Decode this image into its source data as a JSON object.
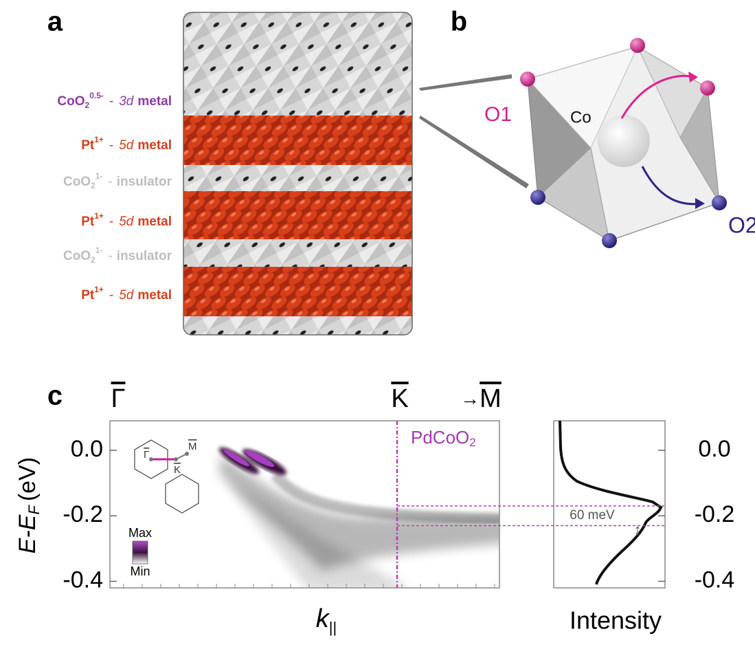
{
  "panel_a": {
    "label": "a",
    "layers": [
      {
        "formula": "CoO",
        "sub": "2",
        "sup": "0.5-",
        "sep": "-",
        "orbital": "3d",
        "kind": "metal",
        "color": "#8e3aa8"
      },
      {
        "formula": "Pt",
        "sup": "1+",
        "sep": "-",
        "orbital": "5d",
        "kind": "metal",
        "color": "#d2401c"
      },
      {
        "formula": "CoO",
        "sub": "2",
        "sup": "1-",
        "sep": "-",
        "kind": "insulator",
        "color": "#bdbdbd"
      },
      {
        "formula": "Pt",
        "sup": "1+",
        "sep": "-",
        "orbital": "5d",
        "kind": "metal",
        "color": "#d2401c"
      },
      {
        "formula": "CoO",
        "sub": "2",
        "sup": "1-",
        "sep": "-",
        "kind": "insulator",
        "color": "#bdbdbd"
      },
      {
        "formula": "Pt",
        "sup": "1+",
        "sep": "-",
        "orbital": "5d",
        "kind": "metal",
        "color": "#d2401c"
      }
    ]
  },
  "panel_b": {
    "label": "b",
    "o1": "O1",
    "co": "Co",
    "o2": "O2"
  },
  "panel_c": {
    "label": "c",
    "k_path": {
      "start": "Γ",
      "mid": "K",
      "arrow": "→",
      "end": "M"
    },
    "material": {
      "text": "PdCoO",
      "sub": "2"
    },
    "inset": {
      "gamma": "Γ",
      "k": "K",
      "m": "M"
    },
    "colorbar": {
      "max": "Max",
      "min": "Min"
    },
    "y_label": {
      "main": "E-E",
      "sub": "F",
      "unit": "(eV)"
    },
    "x_label": {
      "main": "k",
      "sub": "||"
    },
    "ylim": [
      -0.42,
      0.09
    ],
    "yticks": [
      {
        "value": 0,
        "label": "0.0"
      },
      -0.2,
      -0.4
    ],
    "edc": {
      "x_label": "Intensity",
      "gap_levels": [
        -0.17,
        -0.23
      ],
      "gap_label": "60 meV"
    }
  }
}
